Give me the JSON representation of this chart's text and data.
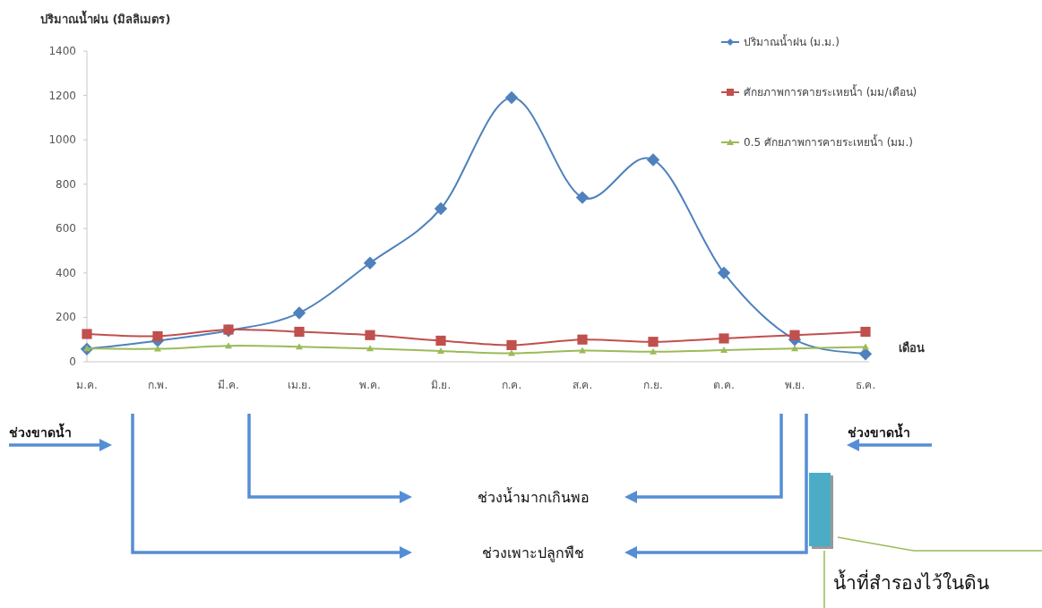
{
  "chart_data": {
    "type": "line",
    "ylabel": "ปริมาณน้ำฝน (มิลลิเมตร)",
    "xlabel": "เดือน",
    "categories": [
      "ม.ค.",
      "ก.พ.",
      "มี.ค.",
      "เม.ย.",
      "พ.ค.",
      "มิ.ย.",
      "ก.ค.",
      "ส.ค.",
      "ก.ย.",
      "ต.ค.",
      "พ.ย.",
      "ธ.ค."
    ],
    "series": [
      {
        "name": "ปริมาณน้ำฝน (ม.ม.)",
        "color": "#4f81bd",
        "marker": "diamond",
        "values": [
          57,
          95,
          140,
          220,
          445,
          690,
          1190,
          740,
          910,
          400,
          100,
          35
        ]
      },
      {
        "name": "ศักยภาพการคายระเหยน้ำ (มม/เดือน)",
        "color": "#c0504d",
        "marker": "square",
        "values": [
          125,
          115,
          145,
          135,
          120,
          95,
          75,
          100,
          90,
          105,
          120,
          135
        ]
      },
      {
        "name": "0.5 ศักยภาพการคายระเหยน้ำ (มม.)",
        "color": "#9bbb59",
        "marker": "triangle",
        "values": [
          60,
          58,
          72,
          68,
          60,
          48,
          38,
          50,
          45,
          52,
          60,
          67
        ]
      }
    ],
    "ylim": [
      0,
      1400
    ],
    "yticks": [
      0,
      200,
      400,
      600,
      800,
      1000,
      1200,
      1400
    ],
    "grid": false,
    "legend": "top right",
    "annotations": [
      "ช่วงขาดน้ำ",
      "ช่วงขาดน้ำ",
      "ช่วงน้ำมากเกินพอ",
      "ช่วงเพาะปลูกพืช",
      "น้ำที่สำรองไว้ในดิน"
    ]
  }
}
